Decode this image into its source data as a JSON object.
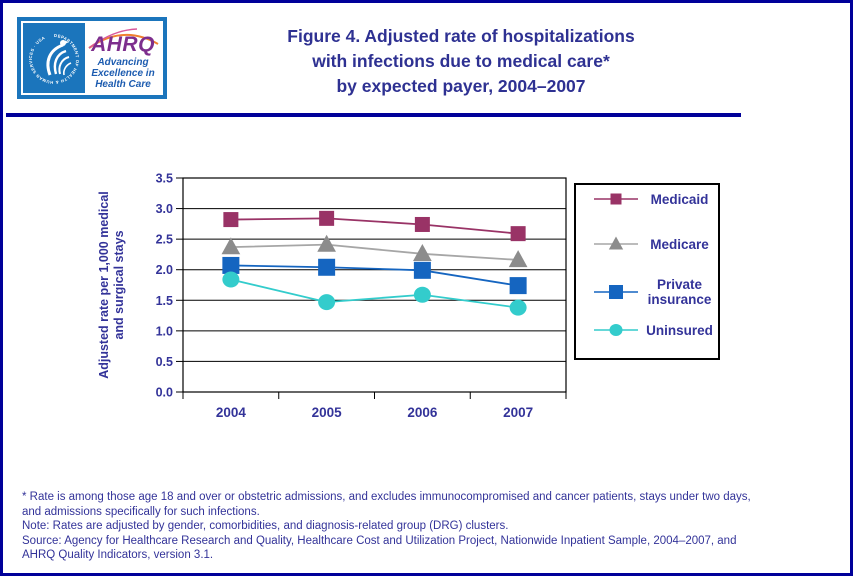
{
  "header": {
    "logo": {
      "seal_text": "DEPARTMENT OF HEALTH & HUMAN SERVICES · USA",
      "ahrq_acronym": "AHRQ",
      "tagline_line1": "Advancing",
      "tagline_line2": "Excellence in",
      "tagline_line3": "Health Care"
    },
    "title_line1": "Figure 4. Adjusted rate of hospitalizations",
    "title_line2": "with infections due to medical care*",
    "title_line3": "by expected payer, 2004–2007"
  },
  "chart_data": {
    "type": "line",
    "title": "Figure 4. Adjusted rate of hospitalizations with infections due to medical care* by expected payer, 2004–2007",
    "categories": [
      "2004",
      "2005",
      "2006",
      "2007"
    ],
    "series": [
      {
        "name": "Medicaid",
        "marker": "square",
        "color": "#993366",
        "line_color": "#993366",
        "values": [
          2.82,
          2.84,
          2.74,
          2.59
        ]
      },
      {
        "name": "Medicare",
        "marker": "triangle",
        "color": "#8C8C8C",
        "line_color": "#A6A6A6",
        "values": [
          2.37,
          2.41,
          2.26,
          2.16
        ]
      },
      {
        "name": "Private insurance",
        "marker": "square",
        "color": "#1565C0",
        "line_color": "#1565C0",
        "values": [
          2.07,
          2.04,
          1.99,
          1.74
        ]
      },
      {
        "name": "Uninsured",
        "marker": "circle",
        "color": "#33CCCC",
        "line_color": "#33CCCC",
        "values": [
          1.84,
          1.47,
          1.59,
          1.38
        ]
      }
    ],
    "xlabel": "",
    "ylabel": "Adjusted rate per 1,000 medical and surgical stays",
    "ylabel_line1": "Adjusted rate per 1,000 medical",
    "ylabel_line2": "and surgical stays",
    "ylim": [
      0.0,
      3.5
    ],
    "ytick_step": 0.5,
    "ytick_labels": [
      "0.0",
      "0.5",
      "1.0",
      "1.5",
      "2.0",
      "2.5",
      "3.0",
      "3.5"
    ],
    "grid": true,
    "legend_position": "right"
  },
  "footnotes": {
    "lines": [
      "* Rate is among those age 18 and over or obstetric admissions, and excludes immunocompromised and cancer patients, stays under two days,",
      "and admissions specifically for such infections.",
      "Note: Rates are adjusted by gender, comorbidities, and diagnosis-related group (DRG) clusters.",
      "Source: Agency for Healthcare Research and Quality, Healthcare Cost and Utilization Project, Nationwide Inpatient Sample, 2004–2007, and",
      "AHRQ Quality Indicators, version 3.1."
    ]
  },
  "colors": {
    "border_navy": "#000099",
    "title_navy": "#2E3192",
    "text_navy": "#333399",
    "logo_blue": "#1B75BC",
    "ahrq_purple": "#7D2E8D",
    "swoosh_orange": "#F08030",
    "swoosh_pink": "#D9579B",
    "axis_black": "#000000",
    "medicaid": "#993366",
    "medicare": "#8C8C8C",
    "private_insurance": "#1565C0",
    "uninsured": "#33CCCC",
    "background": "#FFFFFF"
  }
}
